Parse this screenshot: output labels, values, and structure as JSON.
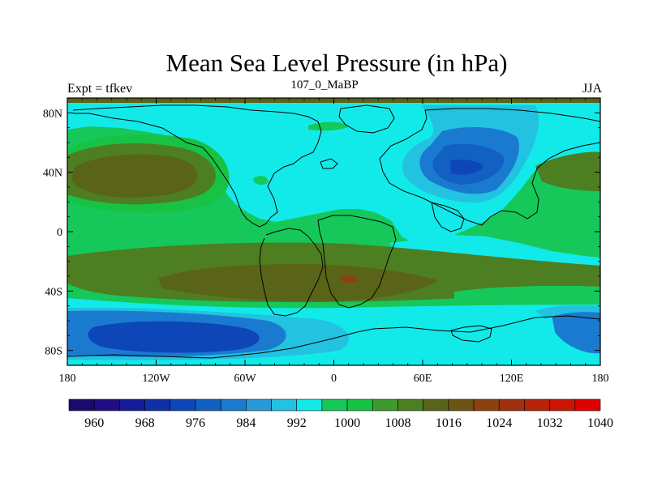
{
  "title": "Mean Sea Level Pressure (in hPa)",
  "subtitle": "107_0_MaBP",
  "left_label": "Expt = tfkev",
  "right_label": "JJA",
  "chart_data": {
    "type": "heatmap",
    "field": "Mean Sea Level Pressure",
    "units": "hPa",
    "x_ticks": [
      "180",
      "120W",
      "60W",
      "0",
      "60E",
      "120E",
      "180"
    ],
    "y_ticks": [
      "80N",
      "40N",
      "0",
      "40S",
      "80S"
    ],
    "xlim": [
      -180,
      180
    ],
    "ylim": [
      -90,
      90
    ],
    "colorbar": {
      "levels": [
        960,
        964,
        968,
        972,
        976,
        980,
        984,
        988,
        992,
        996,
        1000,
        1004,
        1008,
        1012,
        1016,
        1020,
        1024,
        1028,
        1032,
        1036,
        1040
      ],
      "tick_labels": [
        "960",
        "968",
        "976",
        "984",
        "992",
        "1000",
        "1008",
        "1016",
        "1024",
        "1032",
        "1040"
      ],
      "colors": [
        "#1b0a6e",
        "#1e0e82",
        "#161c98",
        "#1030a8",
        "#0e46b8",
        "#1260c2",
        "#1a7ad0",
        "#2a9ad6",
        "#22c2e0",
        "#12eaea",
        "#16c85a",
        "#18c244",
        "#3e9a2c",
        "#4e7e22",
        "#5a6418",
        "#6c5414",
        "#8a4210",
        "#a0300e",
        "#b8220a",
        "#cc1404",
        "#e00000"
      ]
    },
    "regions": [
      {
        "desc": "North Pacific high",
        "lon": -150,
        "lat": 38,
        "value": 1018
      },
      {
        "desc": "Asian summer low",
        "lon": 85,
        "lat": 40,
        "value": 990
      },
      {
        "desc": "Southern hemisphere subtropical high belt",
        "lon": 10,
        "lat": -32,
        "value": 1020
      },
      {
        "desc": "Southern ocean low",
        "lon": -110,
        "lat": -66,
        "value": 982
      },
      {
        "desc": "Southern ocean low (east)",
        "lon": 165,
        "lat": -60,
        "value": 984
      },
      {
        "desc": "Equatorial band",
        "lon": 0,
        "lat": 0,
        "value": 1010
      }
    ]
  }
}
